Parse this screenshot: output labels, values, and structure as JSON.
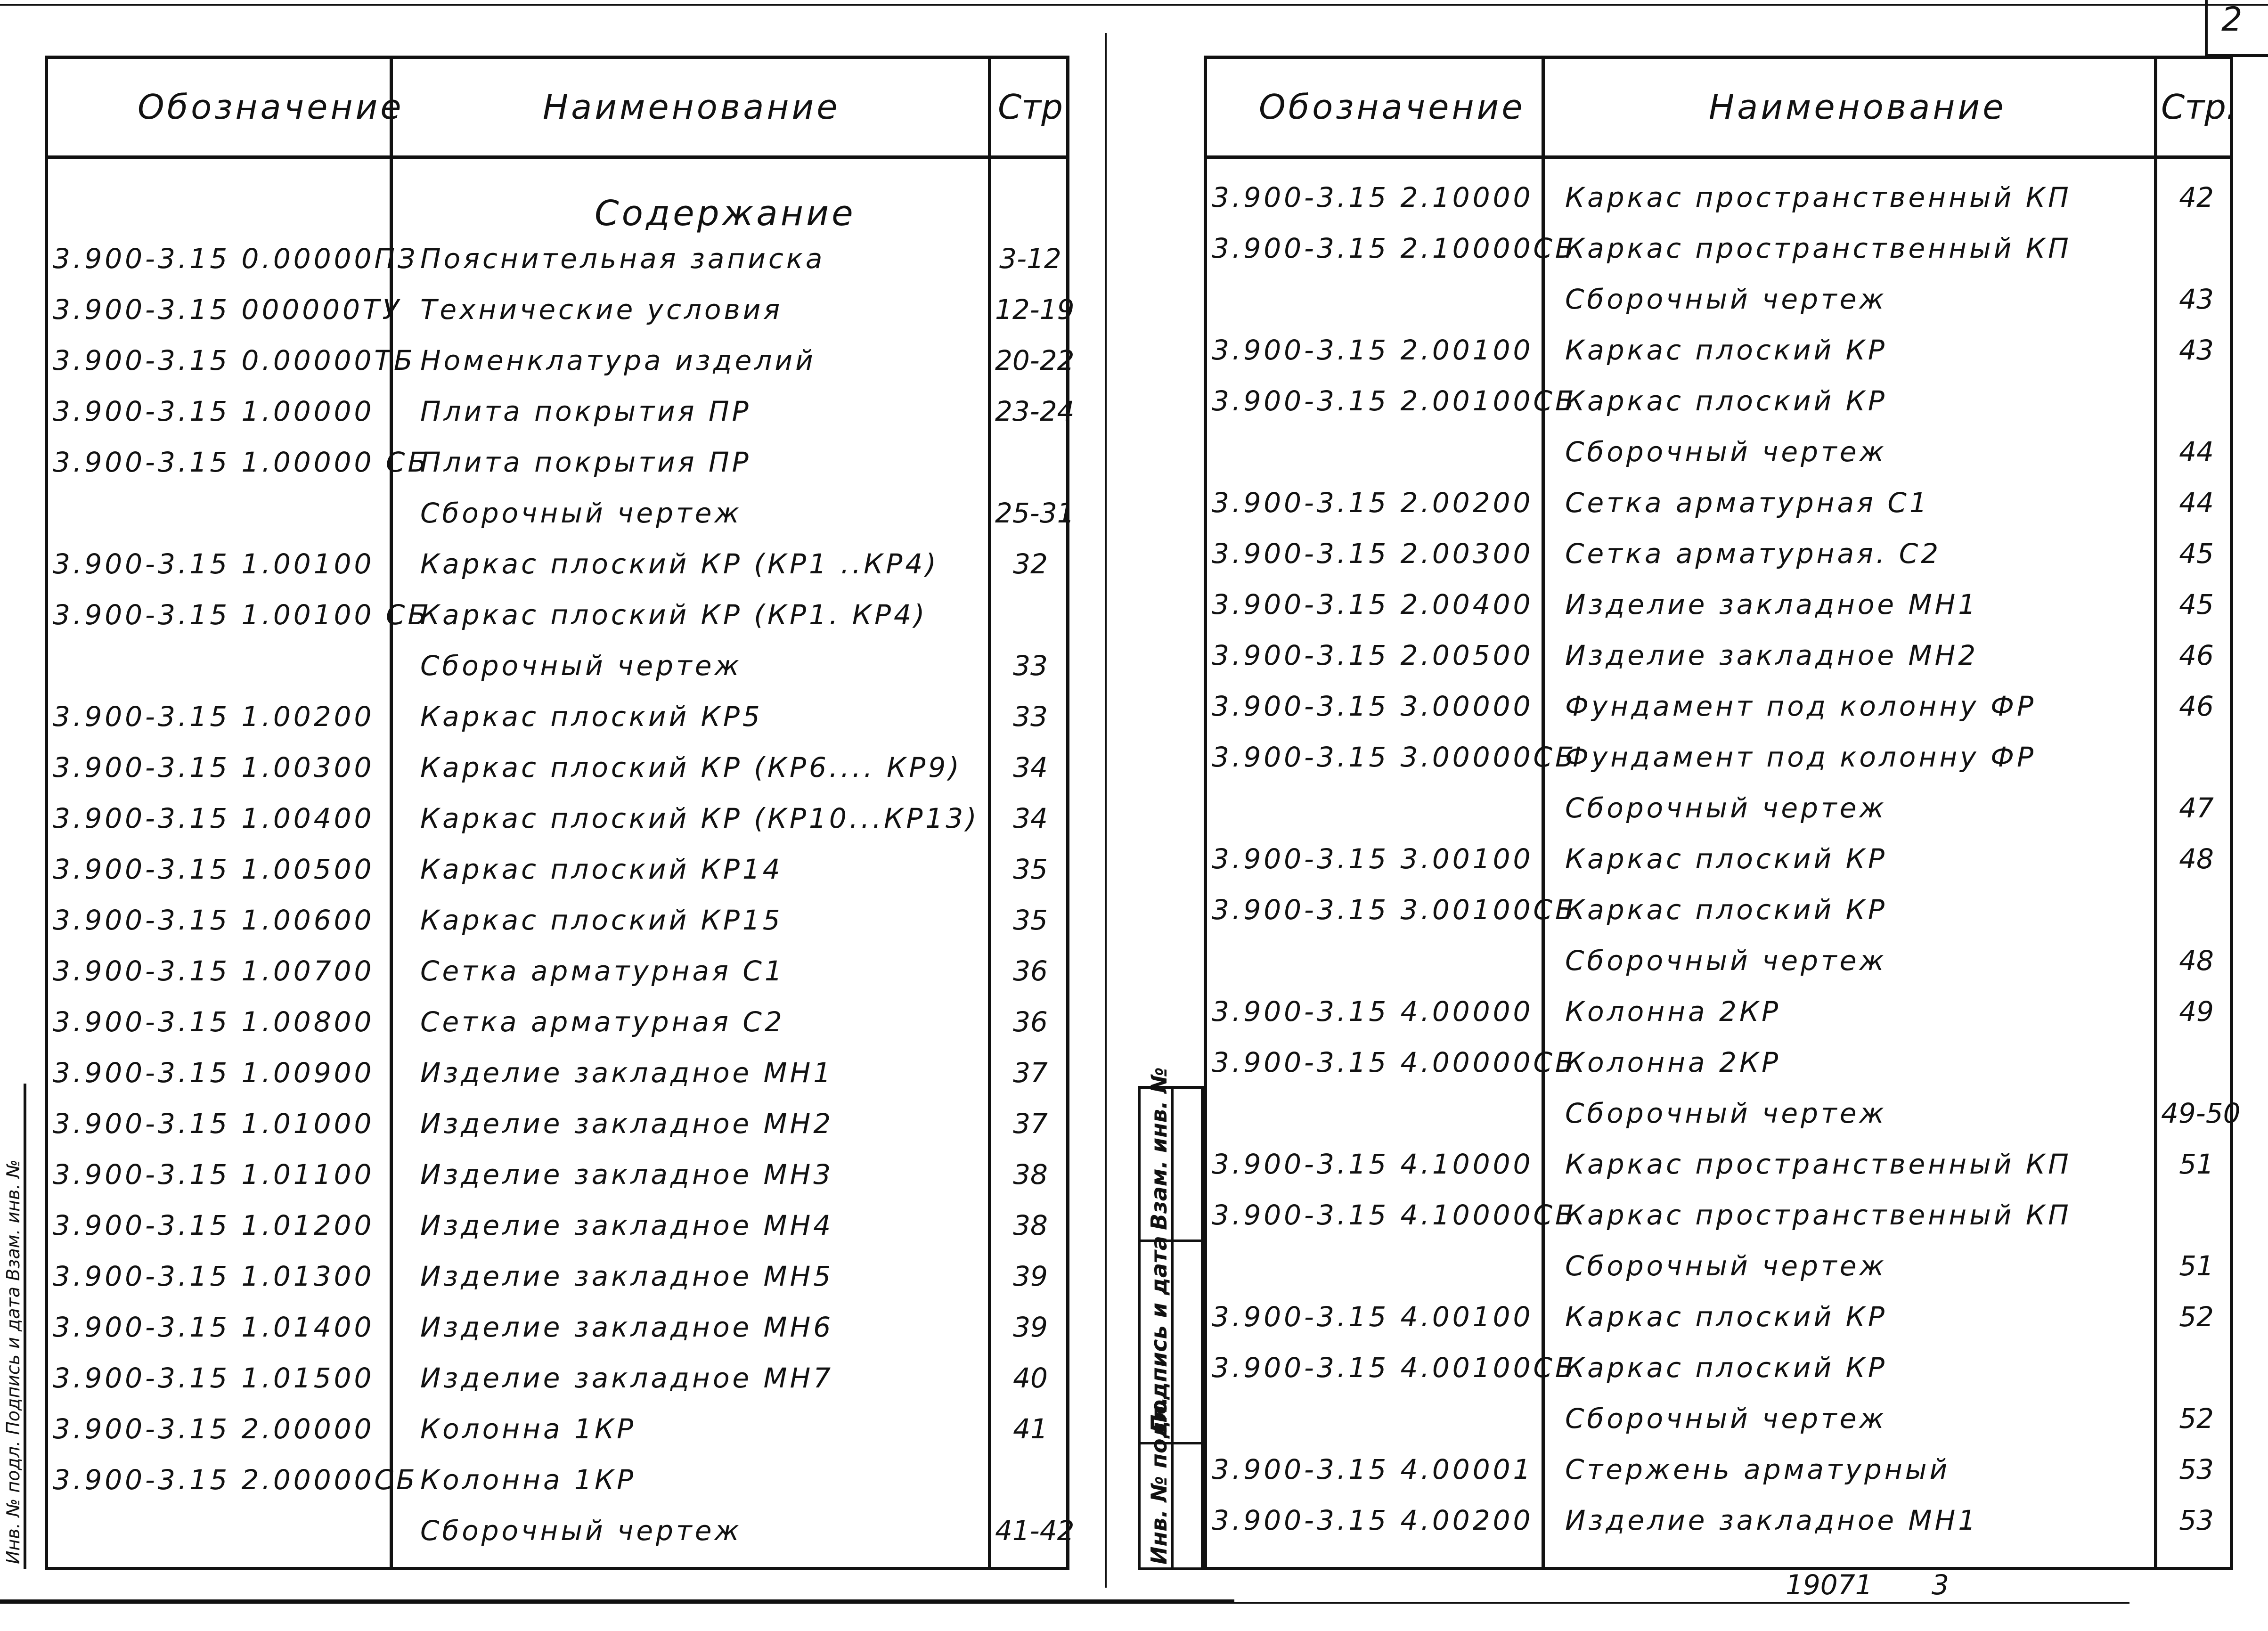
{
  "page_number": "2",
  "headers": {
    "designation": "Обозначение",
    "name": "Наименование",
    "page_left": "Стр",
    "page_right": "Стр."
  },
  "contents_title": "Содержание",
  "left_rows": [
    {
      "code": "3.900-3.15 0.00000ПЗ",
      "name": "Пояснительная записка",
      "page": "3-12"
    },
    {
      "code": "3.900-3.15 000000ТУ",
      "name": "Технические условия",
      "page": "12-19"
    },
    {
      "code": "3.900-3.15 0.00000ТБ",
      "name": "Номенклатура изделий",
      "page": "20-22"
    },
    {
      "code": "3.900-3.15 1.00000",
      "name": "Плита покрытия ПР",
      "page": "23-24"
    },
    {
      "code": "3.900-3.15 1.00000 СБ",
      "name": "Плита покрытия ПР",
      "page": ""
    },
    {
      "code": "",
      "name": "Сборочный чертеж",
      "page": "25-31"
    },
    {
      "code": "3.900-3.15 1.00100",
      "name": "Каркас плоский КР (КР1 ..КР4)",
      "page": "32"
    },
    {
      "code": "3.900-3.15 1.00100 СБ",
      "name": "Каркас плоский КР (КР1. КР4)",
      "page": ""
    },
    {
      "code": "",
      "name": "Сборочный чертеж",
      "page": "33"
    },
    {
      "code": "3.900-3.15 1.00200",
      "name": "Каркас плоский КР5",
      "page": "33"
    },
    {
      "code": "3.900-3.15 1.00300",
      "name": "Каркас плоский КР (КР6.... КР9)",
      "page": "34"
    },
    {
      "code": "3.900-3.15 1.00400",
      "name": "Каркас плоский КР (КР10...КР13)",
      "page": "34"
    },
    {
      "code": "3.900-3.15 1.00500",
      "name": "Каркас плоский КР14",
      "page": "35"
    },
    {
      "code": "3.900-3.15 1.00600",
      "name": "Каркас плоский КР15",
      "page": "35"
    },
    {
      "code": "3.900-3.15 1.00700",
      "name": "Сетка арматурная С1",
      "page": "36"
    },
    {
      "code": "3.900-3.15 1.00800",
      "name": "Сетка арматурная С2",
      "page": "36"
    },
    {
      "code": "3.900-3.15 1.00900",
      "name": "Изделие закладное МН1",
      "page": "37"
    },
    {
      "code": "3.900-3.15 1.01000",
      "name": "Изделие закладное МН2",
      "page": "37"
    },
    {
      "code": "3.900-3.15 1.01100",
      "name": "Изделие закладное МН3",
      "page": "38"
    },
    {
      "code": "3.900-3.15 1.01200",
      "name": "Изделие закладное МН4",
      "page": "38"
    },
    {
      "code": "3.900-3.15 1.01300",
      "name": "Изделие закладное МН5",
      "page": "39"
    },
    {
      "code": "3.900-3.15 1.01400",
      "name": "Изделие закладное МН6",
      "page": "39"
    },
    {
      "code": "3.900-3.15 1.01500",
      "name": "Изделие закладное МН7",
      "page": "40"
    },
    {
      "code": "3.900-3.15 2.00000",
      "name": "Колонна 1КР",
      "page": "41"
    },
    {
      "code": "3.900-3.15 2.00000СБ",
      "name": "Колонна 1КР",
      "page": ""
    },
    {
      "code": "",
      "name": "Сборочный чертеж",
      "page": "41-42"
    }
  ],
  "right_rows": [
    {
      "code": "3.900-3.15 2.10000",
      "name": "Каркас пространственный КП",
      "page": "42"
    },
    {
      "code": "3.900-3.15 2.10000СБ",
      "name": "Каркас пространственный КП",
      "page": ""
    },
    {
      "code": "",
      "name": "Сборочный чертеж",
      "page": "43"
    },
    {
      "code": "3.900-3.15 2.00100",
      "name": "Каркас плоский КР",
      "page": "43"
    },
    {
      "code": "3.900-3.15 2.00100СБ",
      "name": "Каркас плоский КР",
      "page": ""
    },
    {
      "code": "",
      "name": "Сборочный чертеж",
      "page": "44"
    },
    {
      "code": "3.900-3.15 2.00200",
      "name": "Сетка арматурная С1",
      "page": "44"
    },
    {
      "code": "3.900-3.15 2.00300",
      "name": "Сетка арматурная. С2",
      "page": "45"
    },
    {
      "code": "3.900-3.15 2.00400",
      "name": "Изделие закладное МН1",
      "page": "45"
    },
    {
      "code": "3.900-3.15 2.00500",
      "name": "Изделие закладное МН2",
      "page": "46"
    },
    {
      "code": "3.900-3.15 3.00000",
      "name": "Фундамент под колонну ФР",
      "page": "46"
    },
    {
      "code": "3.900-3.15 3.00000СБ",
      "name": "Фундамент под колонну ФР",
      "page": ""
    },
    {
      "code": "",
      "name": "Сборочный чертеж",
      "page": "47"
    },
    {
      "code": "3.900-3.15 3.00100",
      "name": "Каркас плоский КР",
      "page": "48"
    },
    {
      "code": "3.900-3.15 3.00100СБ",
      "name": "Каркас плоский КР",
      "page": ""
    },
    {
      "code": "",
      "name": "Сборочный чертеж",
      "page": "48"
    },
    {
      "code": "3.900-3.15 4.00000",
      "name": "Колонна 2КР",
      "page": "49"
    },
    {
      "code": "3.900-3.15 4.00000СБ",
      "name": "Колонна 2КР",
      "page": ""
    },
    {
      "code": "",
      "name": "Сборочный чертеж",
      "page": "49-50"
    },
    {
      "code": "3.900-3.15 4.10000",
      "name": "Каркас пространственный КП",
      "page": "51"
    },
    {
      "code": "3.900-3.15 4.10000СБ",
      "name": "Каркас пространственный КП",
      "page": ""
    },
    {
      "code": "",
      "name": "Сборочный чертеж",
      "page": "51"
    },
    {
      "code": "3.900-3.15 4.00100",
      "name": "Каркас плоский КР",
      "page": "52"
    },
    {
      "code": "3.900-3.15 4.00100СБ",
      "name": "Каркас плоский КР",
      "page": ""
    },
    {
      "code": "",
      "name": "Сборочный чертеж",
      "page": "52"
    },
    {
      "code": "3.900-3.15 4.00001",
      "name": "Стержень арматурный",
      "page": "53"
    },
    {
      "code": "3.900-3.15 4.00200",
      "name": "Изделие закладное МН1",
      "page": "53"
    }
  ],
  "stamp": {
    "inv_no": "Взам. инв. №",
    "sign_date": "Подпись и дата",
    "inv_orig": "Инв. № подл."
  },
  "left_strip": "Инв. № подл. Подпись и дата Взам. инв. №",
  "footer": {
    "doc_no": "19071",
    "sheet": "3"
  }
}
